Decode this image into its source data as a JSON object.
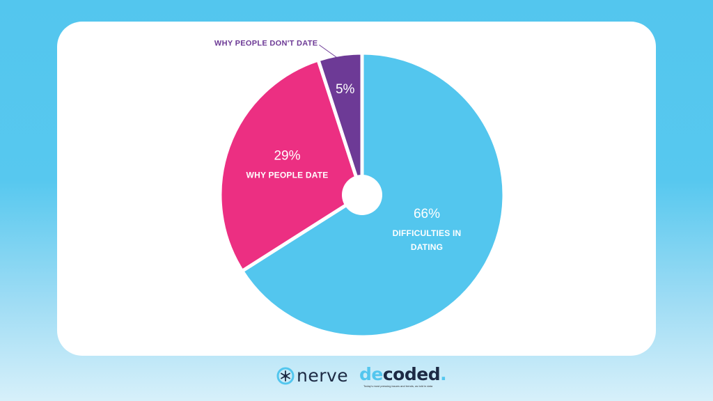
{
  "chart_data": {
    "type": "pie",
    "title": "",
    "slices": [
      {
        "label": "DIFFICULTIES IN DATING",
        "label_lines": [
          "DIFFICULTIES IN",
          "DATING"
        ],
        "value": 66,
        "value_label": "66%",
        "color": "#53c6ee"
      },
      {
        "label": "WHY PEOPLE DATE",
        "label_lines": [
          "WHY PEOPLE DATE"
        ],
        "value": 29,
        "value_label": "29%",
        "color": "#ec2f82"
      },
      {
        "label": "WHY PEOPLE DON'T DATE",
        "label_lines": [],
        "callout": "WHY PEOPLE DON'T DATE",
        "value": 5,
        "value_label": "5%",
        "color": "#6d3a96"
      }
    ],
    "start_angle_deg": 0,
    "direction": "clockwise",
    "donut_hole": true,
    "legend": "none"
  },
  "footer": {
    "brand_left": "nerve",
    "brand_right_prefix": "de",
    "brand_right_suffix": "coded",
    "brand_right_dot": ".",
    "tagline": "Today's most pressing issues and trends, as told in data"
  },
  "colors": {
    "background": "#53c6ee",
    "card": "#ffffff",
    "brand_navy": "#1d2a44",
    "callout_text": "#6d3a96"
  }
}
